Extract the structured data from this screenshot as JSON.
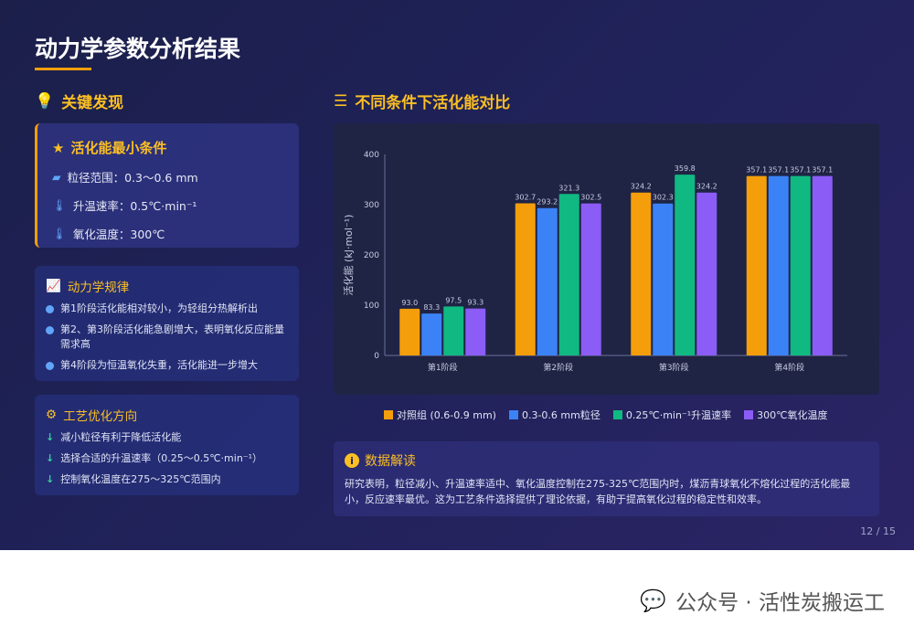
{
  "title": "动力学参数分析结果",
  "left": {
    "section_title": "关键发现",
    "card1": {
      "title": "活化能最小条件",
      "rows": [
        "粒径范围：0.3～0.6 mm",
        "升温速率：0.5℃·min⁻¹",
        "氧化温度：300℃"
      ]
    },
    "card2": {
      "title": "动力学规律",
      "items": [
        "第1阶段活化能相对较小，为轻组分热解析出",
        "第2、第3阶段活化能急剧增大，表明氧化反应能量需求高",
        "第4阶段为恒温氧化失重，活化能进一步增大"
      ]
    },
    "card3": {
      "title": "工艺优化方向",
      "items": [
        "减小粒径有利于降低活化能",
        "选择合适的升温速率（0.25～0.5℃·min⁻¹）",
        "控制氧化温度在275～325℃范围内"
      ]
    }
  },
  "right": {
    "section_title": "不同条件下活化能对比",
    "info_title": "数据解读",
    "info_text": "研究表明，粒径减小、升温速率适中、氧化温度控制在275-325℃范围内时，煤沥青球氧化不熔化过程的活化能最小，反应速率最优。这为工艺条件选择提供了理论依据，有助于提高氧化过程的稳定性和效率。"
  },
  "page_number": "12 / 15",
  "watermark": "公众号 · 活性炭搬运工",
  "chart_data": {
    "type": "bar",
    "categories": [
      "第1阶段",
      "第2阶段",
      "第3阶段",
      "第4阶段"
    ],
    "ylabel": "活化能 (kJ·mol⁻¹)",
    "ylim": [
      0,
      400
    ],
    "yticks": [
      0,
      100,
      200,
      300,
      400
    ],
    "legend_position": "bottom",
    "series": [
      {
        "name": "对照组 (0.6-0.9 mm)",
        "color": "#f59e0b",
        "values": [
          93.0,
          302.7,
          324.2,
          357.1
        ]
      },
      {
        "name": "0.3-0.6 mm粒径",
        "color": "#3b82f6",
        "values": [
          83.3,
          293.2,
          302.3,
          357.1
        ]
      },
      {
        "name": "0.25℃·min⁻¹升温速率",
        "color": "#10b981",
        "values": [
          97.5,
          321.3,
          359.8,
          357.1
        ]
      },
      {
        "name": "300℃氧化温度",
        "color": "#8b5cf6",
        "values": [
          93.3,
          302.5,
          324.2,
          357.1
        ]
      }
    ]
  }
}
